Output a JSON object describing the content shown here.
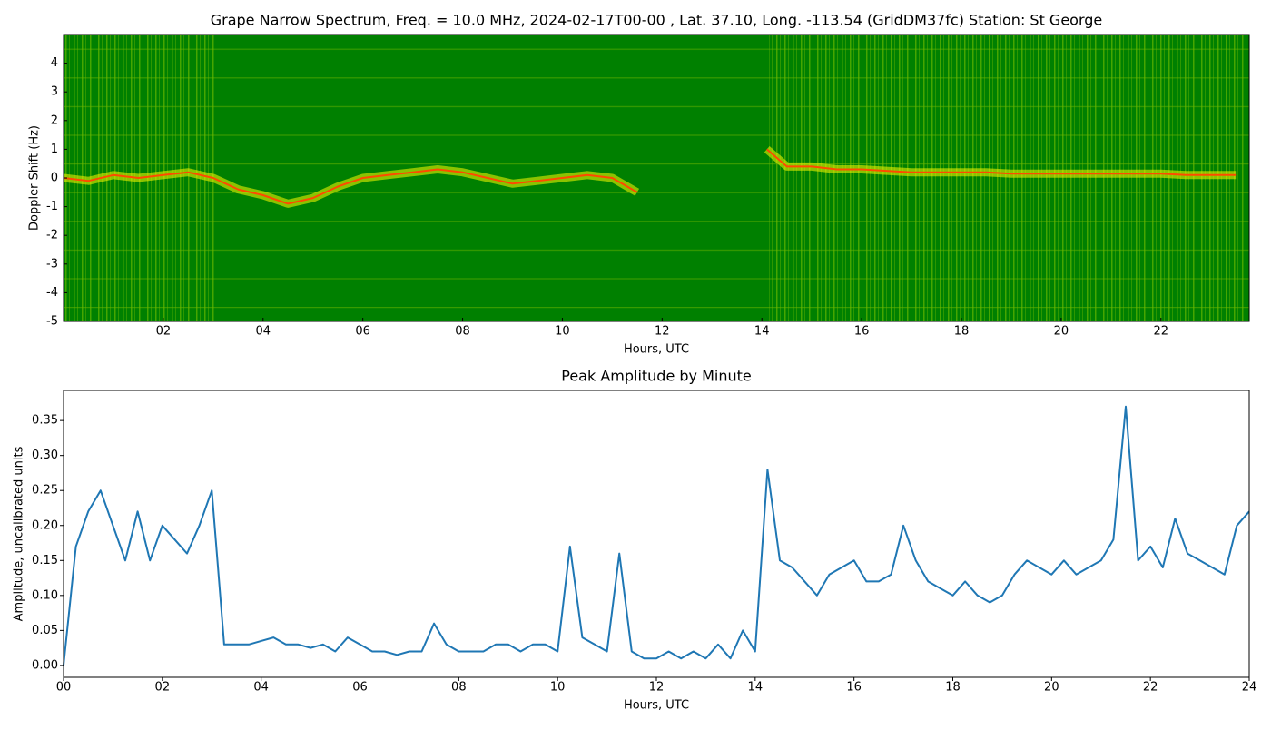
{
  "chart_data": [
    {
      "type": "spectrogram",
      "title": "Grape Narrow Spectrum, Freq. = 10.0 MHz, 2024-02-17T00-00 , Lat.  37.10, Long. -113.54 (GridDM37fc) Station: St George",
      "xlabel": "Hours, UTC",
      "ylabel": "Doppler Shift (Hz)",
      "background": "#008000",
      "color": "#ff4a00",
      "glow": "#e8f000",
      "x": [
        0,
        0.5,
        1,
        1.5,
        2,
        2.5,
        3,
        3.5,
        4,
        4.5,
        5,
        5.5,
        6,
        6.5,
        7,
        7.5,
        8,
        8.5,
        9,
        9.5,
        10,
        10.5,
        11,
        11.5,
        12,
        12.5,
        13,
        13.5,
        14.1,
        14.5,
        15,
        15.5,
        16,
        16.5,
        17,
        17.5,
        18,
        18.5,
        19,
        19.5,
        20,
        20.5,
        21,
        21.5,
        22,
        22.5,
        23,
        23.5
      ],
      "values": [
        0.0,
        -0.1,
        0.1,
        0.0,
        0.1,
        0.2,
        0.0,
        -0.4,
        -0.6,
        -0.9,
        -0.7,
        -0.3,
        0.0,
        0.1,
        0.2,
        0.3,
        0.2,
        0.0,
        -0.2,
        -0.1,
        0.0,
        0.1,
        0.0,
        -0.5,
        null,
        null,
        null,
        null,
        1.0,
        0.4,
        0.4,
        0.3,
        0.3,
        0.25,
        0.2,
        0.2,
        0.2,
        0.2,
        0.15,
        0.15,
        0.15,
        0.15,
        0.15,
        0.15,
        0.15,
        0.1,
        0.1,
        0.1
      ],
      "xlim": [
        0,
        23.77
      ],
      "ylim": [
        -5,
        5
      ],
      "xticks": [
        {
          "value": 2,
          "label": "02"
        },
        {
          "value": 4,
          "label": "04"
        },
        {
          "value": 6,
          "label": "06"
        },
        {
          "value": 8,
          "label": "08"
        },
        {
          "value": 10,
          "label": "10"
        },
        {
          "value": 12,
          "label": "12"
        },
        {
          "value": 14,
          "label": "14"
        },
        {
          "value": 16,
          "label": "16"
        },
        {
          "value": 18,
          "label": "18"
        },
        {
          "value": 20,
          "label": "20"
        },
        {
          "value": 22,
          "label": "22"
        }
      ],
      "yticks": [
        -5,
        -4,
        -3,
        -2,
        -1,
        0,
        1,
        2,
        3,
        4
      ]
    },
    {
      "type": "line",
      "title": "Peak Amplitude by Minute",
      "xlabel": "Hours, UTC",
      "ylabel": "Amplitude, uncalibrated units",
      "color": "#1f77b4",
      "x": [
        0,
        0.25,
        0.5,
        0.75,
        1,
        1.25,
        1.5,
        1.75,
        2,
        2.25,
        2.5,
        2.75,
        3,
        3.25,
        3.5,
        3.75,
        4,
        4.25,
        4.5,
        4.75,
        5,
        5.25,
        5.5,
        5.75,
        6,
        6.25,
        6.5,
        6.75,
        7,
        7.25,
        7.5,
        7.75,
        8,
        8.25,
        8.5,
        8.75,
        9,
        9.25,
        9.5,
        9.75,
        10,
        10.25,
        10.5,
        10.75,
        11,
        11.25,
        11.5,
        11.75,
        12,
        12.25,
        12.5,
        12.75,
        13,
        13.25,
        13.5,
        13.75,
        14,
        14.25,
        14.5,
        14.75,
        15,
        15.25,
        15.5,
        15.75,
        16,
        16.25,
        16.5,
        16.75,
        17,
        17.25,
        17.5,
        17.75,
        18,
        18.25,
        18.5,
        18.75,
        19,
        19.25,
        19.5,
        19.75,
        20,
        20.25,
        20.5,
        20.75,
        21,
        21.25,
        21.5,
        21.75,
        22,
        22.25,
        22.5,
        22.75,
        23,
        23.25,
        23.5,
        23.75,
        24
      ],
      "values": [
        0.0,
        0.17,
        0.22,
        0.25,
        0.2,
        0.15,
        0.22,
        0.15,
        0.2,
        0.18,
        0.16,
        0.2,
        0.25,
        0.03,
        0.03,
        0.03,
        0.035,
        0.04,
        0.03,
        0.03,
        0.025,
        0.03,
        0.02,
        0.04,
        0.03,
        0.02,
        0.02,
        0.015,
        0.02,
        0.02,
        0.06,
        0.03,
        0.02,
        0.02,
        0.02,
        0.03,
        0.03,
        0.02,
        0.03,
        0.03,
        0.02,
        0.17,
        0.04,
        0.03,
        0.02,
        0.16,
        0.02,
        0.01,
        0.01,
        0.02,
        0.01,
        0.02,
        0.01,
        0.03,
        0.01,
        0.05,
        0.02,
        0.28,
        0.15,
        0.14,
        0.12,
        0.1,
        0.13,
        0.14,
        0.15,
        0.12,
        0.12,
        0.13,
        0.2,
        0.15,
        0.12,
        0.11,
        0.1,
        0.12,
        0.1,
        0.09,
        0.1,
        0.13,
        0.15,
        0.14,
        0.13,
        0.15,
        0.13,
        0.14,
        0.15,
        0.18,
        0.37,
        0.15,
        0.17,
        0.14,
        0.21,
        0.16,
        0.15,
        0.14,
        0.13,
        0.2,
        0.22
      ],
      "xlim": [
        0,
        24
      ],
      "ylim": [
        -0.017,
        0.393
      ],
      "xticks": [
        {
          "value": 0,
          "label": "00"
        },
        {
          "value": 2,
          "label": "02"
        },
        {
          "value": 4,
          "label": "04"
        },
        {
          "value": 6,
          "label": "06"
        },
        {
          "value": 8,
          "label": "08"
        },
        {
          "value": 10,
          "label": "10"
        },
        {
          "value": 12,
          "label": "12"
        },
        {
          "value": 14,
          "label": "14"
        },
        {
          "value": 16,
          "label": "16"
        },
        {
          "value": 18,
          "label": "18"
        },
        {
          "value": 20,
          "label": "20"
        },
        {
          "value": 22,
          "label": "22"
        },
        {
          "value": 24,
          "label": "24"
        }
      ],
      "yticks": [
        {
          "value": 0,
          "label": "0.00"
        },
        {
          "value": 0.05,
          "label": "0.05"
        },
        {
          "value": 0.1,
          "label": "0.10"
        },
        {
          "value": 0.15,
          "label": "0.15"
        },
        {
          "value": 0.2,
          "label": "0.20"
        },
        {
          "value": 0.25,
          "label": "0.25"
        },
        {
          "value": 0.3,
          "label": "0.30"
        },
        {
          "value": 0.35,
          "label": "0.35"
        }
      ]
    }
  ]
}
